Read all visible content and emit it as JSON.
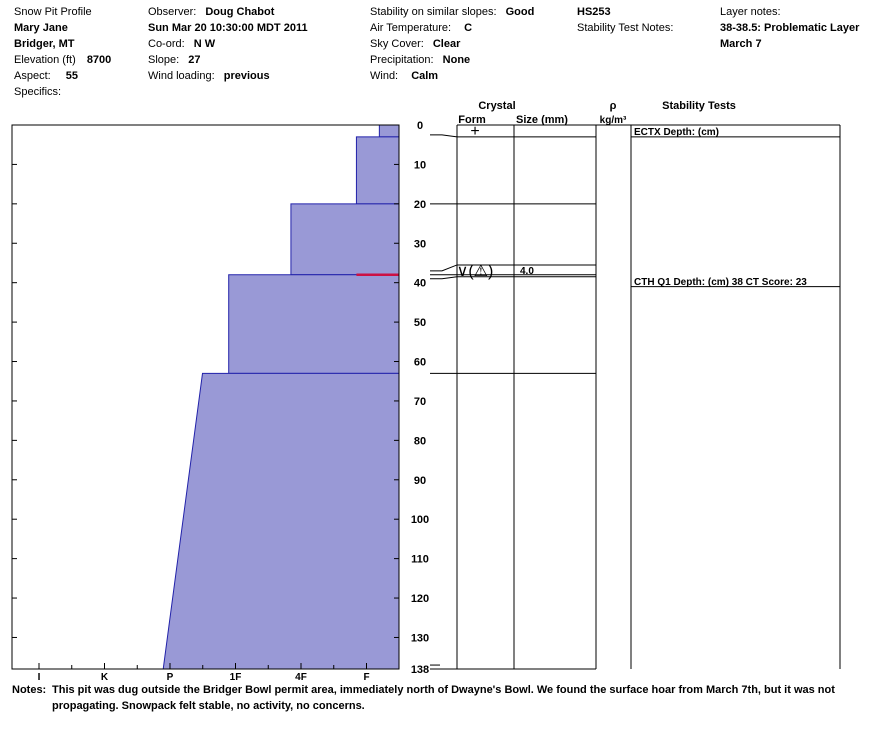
{
  "header": {
    "title": "Snow Pit Profile",
    "name": "Mary Jane",
    "location": "Bridger, MT",
    "elevation_label": "Elevation (ft)",
    "elevation_value": "8700",
    "aspect_label": "Aspect:",
    "aspect_value": "55",
    "specifics_label": "Specifics:",
    "observer_label": "Observer:",
    "observer_value": "Doug Chabot",
    "datetime": "Sun Mar 20 10:30:00 MDT 2011",
    "coord_label": "Co-ord:",
    "coord_value": "N  W",
    "slope_label": "Slope:",
    "slope_value": "27",
    "wind_loading_label": "Wind loading:",
    "wind_loading_value": "previous",
    "stability_label": "Stability on similar slopes:",
    "stability_value": "Good",
    "air_temp_label": "Air Temperature:",
    "air_temp_value": "C",
    "sky_label": "Sky Cover:",
    "sky_value": "Clear",
    "precip_label": "Precipitation:",
    "precip_value": "None",
    "wind_label": "Wind:",
    "wind_value": "Calm",
    "hs": "HS253",
    "stability_notes_label": "Stability Test Notes:",
    "layer_notes_label": "Layer notes:",
    "layer_note_1": "38-38.5: Problematic Layer",
    "layer_note_2": "March 7"
  },
  "columns": {
    "crystal": "Crystal",
    "form": "Form",
    "size": "Size (mm)",
    "rho": "ρ",
    "density_unit": "kg/m³",
    "stability_tests": "Stability Tests"
  },
  "colors": {
    "hardness_fill": "#9999d6",
    "hardness_edge": "#2222aa",
    "weak_layer": "#cc1144"
  },
  "chart_data": {
    "type": "area",
    "depth_axis": {
      "range": [
        0,
        138
      ],
      "ticks": [
        0,
        10,
        20,
        30,
        40,
        50,
        60,
        70,
        80,
        90,
        100,
        110,
        120,
        130,
        138
      ],
      "tick_labels": [
        "0",
        "10",
        "20",
        "30",
        "40",
        "50",
        "60",
        "70",
        "80",
        "90",
        "100",
        "110",
        "120",
        "130",
        "138"
      ]
    },
    "hardness_axis": {
      "labels": [
        "I",
        "K",
        "P",
        "1F",
        "4F",
        "F"
      ],
      "index": [
        0,
        1,
        2,
        3,
        4,
        5
      ],
      "max": 6
    },
    "hardness_layers": [
      {
        "top": 0,
        "bottom": 3,
        "hardness_top": 0.3,
        "hardness_bottom": 0.3
      },
      {
        "top": 3,
        "bottom": 20,
        "hardness_top": 0.65,
        "hardness_bottom": 0.65
      },
      {
        "top": 20,
        "bottom": 38,
        "hardness_top": 1.65,
        "hardness_bottom": 1.65
      },
      {
        "top": 38,
        "bottom": 63,
        "hardness_top": 2.6,
        "hardness_bottom": 2.6
      },
      {
        "top": 63,
        "bottom": 138,
        "hardness_top": 3.0,
        "hardness_bottom": 3.6
      }
    ],
    "weak_layer": {
      "depth": 38,
      "from_hardness": 0,
      "to_hardness": 0.65
    },
    "layer_boundaries": [
      3,
      20,
      35.5,
      38,
      38.5,
      63
    ],
    "crystals": [
      {
        "depth": 1.5,
        "form_symbol": "+",
        "size": ""
      },
      {
        "depth": 37,
        "form_symbol": "∨(⚠)",
        "size": "4.0"
      }
    ],
    "stability_tests": [
      {
        "depth": 0,
        "text": "ECTX  Depth: (cm)",
        "line_depth": 3
      },
      {
        "depth": 38,
        "text": "CTH Q1 Depth: (cm) 38 CT Score: 23",
        "line_depth": 41
      }
    ]
  },
  "notes": {
    "label": "Notes:",
    "line1": "This pit was dug outside the Bridger Bowl permit area, immediately north of Dwayne's Bowl.  We found the surface hoar from March 7th, but it was not",
    "line2": "propagating.  Snowpack felt stable, no activity, no concerns."
  }
}
